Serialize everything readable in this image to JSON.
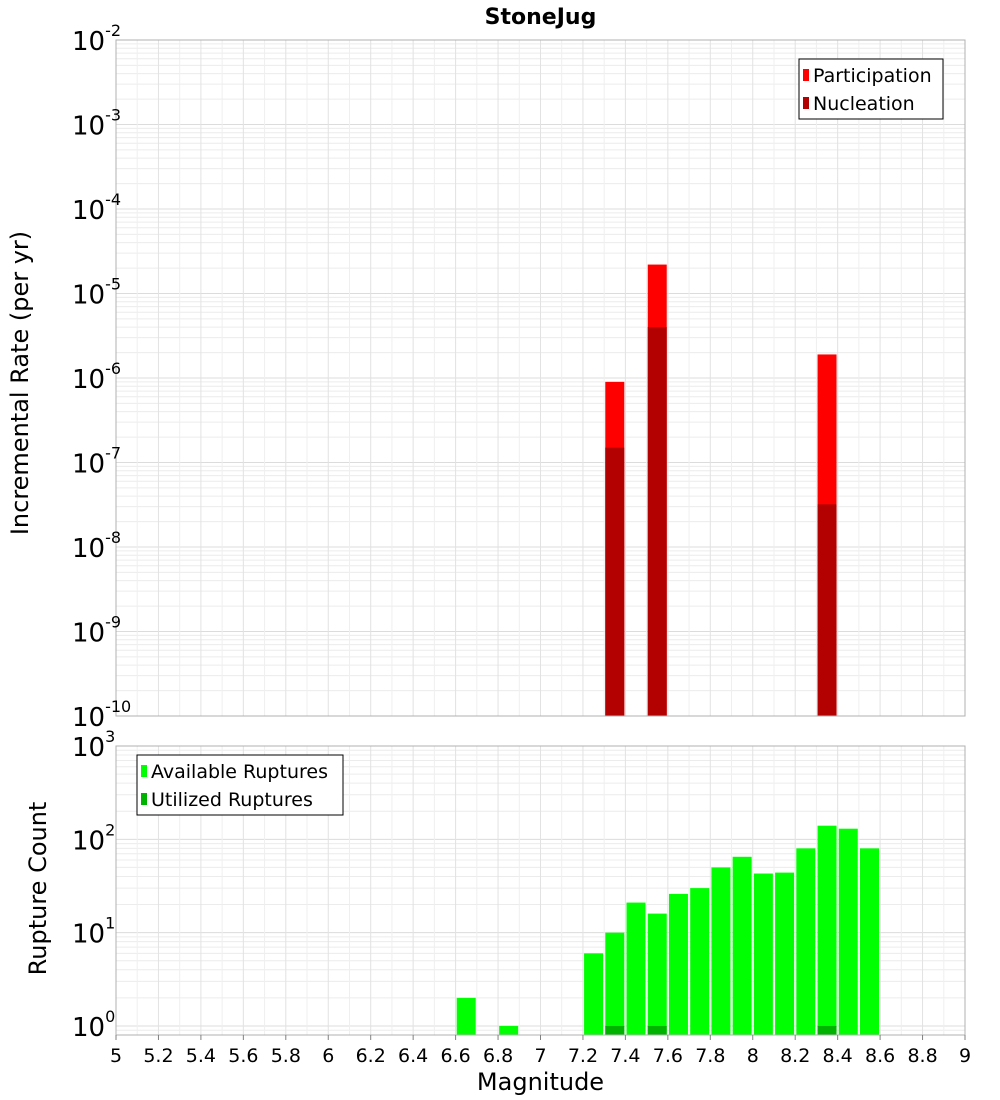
{
  "chart_data": [
    {
      "type": "bar",
      "title": "StoneJug",
      "xlabel": "",
      "ylabel": "Incremental Rate (per yr)",
      "yscale": "log",
      "ylim": [
        1e-10,
        0.01
      ],
      "xlim": [
        5,
        9
      ],
      "grid": true,
      "legend_position": "top-right",
      "ytick_labels": [
        {
          "base": "10",
          "exp": "-2"
        },
        {
          "base": "10",
          "exp": "-3"
        },
        {
          "base": "10",
          "exp": "-4"
        },
        {
          "base": "10",
          "exp": "-5"
        },
        {
          "base": "10",
          "exp": "-6"
        },
        {
          "base": "10",
          "exp": "-7"
        },
        {
          "base": "10",
          "exp": "-8"
        },
        {
          "base": "10",
          "exp": "-9"
        },
        {
          "base": "10",
          "exp": "-10"
        }
      ],
      "series": [
        {
          "name": "Participation",
          "color": "#ff0000",
          "x": [
            7.35,
            7.55,
            8.35
          ],
          "values": [
            9e-07,
            2.2e-05,
            1.9e-06
          ]
        },
        {
          "name": "Nucleation",
          "color": "#b30000",
          "x": [
            7.35,
            7.55,
            8.35
          ],
          "values": [
            1.5e-07,
            4e-06,
            3.2e-08
          ]
        }
      ]
    },
    {
      "type": "bar",
      "title": "",
      "xlabel": "Magnitude",
      "ylabel": "Rupture Count",
      "yscale": "log",
      "ylim": [
        0.8,
        1000
      ],
      "xlim": [
        5,
        9
      ],
      "grid": true,
      "legend_position": "top-left",
      "ytick_labels": [
        {
          "base": "10",
          "exp": "3"
        },
        {
          "base": "10",
          "exp": "2"
        },
        {
          "base": "10",
          "exp": "1"
        },
        {
          "base": "10",
          "exp": "0"
        }
      ],
      "xtick_labels": [
        "5",
        "5.2",
        "5.4",
        "5.6",
        "5.8",
        "6",
        "6.2",
        "6.4",
        "6.6",
        "6.8",
        "7",
        "7.2",
        "7.4",
        "7.6",
        "7.8",
        "8",
        "8.2",
        "8.4",
        "8.6",
        "8.8",
        "9"
      ],
      "series": [
        {
          "name": "Available Ruptures",
          "color": "#00ff00",
          "x": [
            6.65,
            6.85,
            7.25,
            7.35,
            7.45,
            7.55,
            7.65,
            7.75,
            7.85,
            7.95,
            8.05,
            8.15,
            8.25,
            8.35,
            8.45,
            8.55
          ],
          "values": [
            2,
            1,
            6,
            10,
            21,
            16,
            26,
            30,
            50,
            65,
            43,
            44,
            80,
            140,
            130,
            80
          ]
        },
        {
          "name": "Utilized Ruptures",
          "color": "#00b300",
          "x": [
            7.35,
            7.55,
            8.35
          ],
          "values": [
            1,
            1,
            1
          ]
        }
      ]
    }
  ]
}
